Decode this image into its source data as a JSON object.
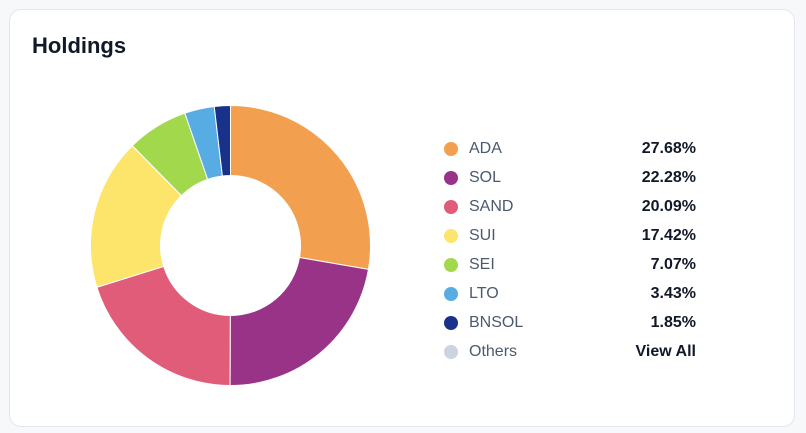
{
  "card": {
    "title": "Holdings"
  },
  "chart_data": {
    "type": "pie",
    "donut": true,
    "slices": [
      {
        "label": "ADA",
        "value": 27.68,
        "display": "27.68%",
        "color": "#f2a050"
      },
      {
        "label": "SOL",
        "value": 22.28,
        "display": "22.28%",
        "color": "#993388"
      },
      {
        "label": "SAND",
        "value": 20.09,
        "display": "20.09%",
        "color": "#e05c78"
      },
      {
        "label": "SUI",
        "value": 17.42,
        "display": "17.42%",
        "color": "#fde46a"
      },
      {
        "label": "SEI",
        "value": 7.07,
        "display": "7.07%",
        "color": "#a2d94c"
      },
      {
        "label": "LTO",
        "value": 3.43,
        "display": "3.43%",
        "color": "#57ace4"
      },
      {
        "label": "BNSOL",
        "value": 1.85,
        "display": "1.85%",
        "color": "#18318a"
      }
    ]
  },
  "legend": {
    "others_label": "Others",
    "others_color": "#cbd5e1",
    "view_all_label": "View All"
  }
}
